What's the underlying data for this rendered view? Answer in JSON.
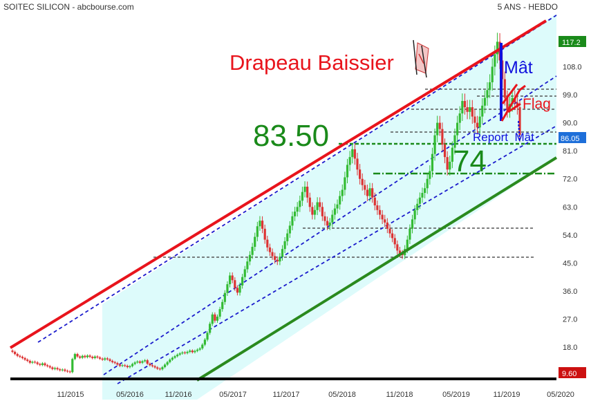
{
  "header": {
    "left": "SOITEC SILICON - abcbourse.com",
    "right": "5 ANS - HEBDO"
  },
  "colors": {
    "up": "#33bb33",
    "down": "#dd3333",
    "channel_top": "#e8141c",
    "channel_bottom": "#2a8a1e",
    "dashed_channel": "#1a1acc",
    "fill": "#ddfbfb",
    "price_badge": "#1e6fd9",
    "high_badge": "#1a8a1a",
    "low_badge": "#cc1111"
  },
  "annotations": {
    "title": "Drapeau Baissier",
    "resistance_value": "83.50",
    "support_value": "74",
    "mast": "Mât",
    "flag": "Flag",
    "report": "Report  Mât"
  },
  "chart_data": {
    "type": "candlestick",
    "title": "SOITEC SILICON",
    "period": "5 ANS - HEBDO",
    "x_ticks": [
      "11/2015",
      "05/2016",
      "11/2016",
      "05/2017",
      "11/2017",
      "05/2018",
      "11/2018",
      "05/2019",
      "11/2019",
      "05/2020"
    ],
    "y_ticks": [
      18.0,
      27.0,
      36.0,
      45.0,
      54.0,
      63.0,
      72.0,
      81.0,
      90.0,
      99.0,
      108.0
    ],
    "ylim": [
      8,
      122
    ],
    "last_price": "86.05",
    "high_label": "117.2",
    "low_label": "9.60",
    "x_positions_of_ticks_note": "tick order left to right",
    "prices_close": [
      16.5,
      15.8,
      15.2,
      14.9,
      14.5,
      14.0,
      13.6,
      13.0,
      13.3,
      13.1,
      12.6,
      12.3,
      12.8,
      12.2,
      11.9,
      11.5,
      11.0,
      11.3,
      10.9,
      10.6,
      10.8,
      10.4,
      10.2,
      10.0,
      14.2,
      15.8,
      15.0,
      14.6,
      15.2,
      14.8,
      15.3,
      14.9,
      14.5,
      15.0,
      14.7,
      14.3,
      14.0,
      14.4,
      14.1,
      13.6,
      13.2,
      12.9,
      12.4,
      12.0,
      12.2,
      12.0,
      11.6,
      11.9,
      12.6,
      13.1,
      13.4,
      13.0,
      13.5,
      13.8,
      12.7,
      12.2,
      11.9,
      11.5,
      11.1,
      10.9,
      11.6,
      12.4,
      13.2,
      14.0,
      14.6,
      15.1,
      15.6,
      16.0,
      16.3,
      16.1,
      16.5,
      16.9,
      16.4,
      16.8,
      17.2,
      17.6,
      18.8,
      20.4,
      22.6,
      25.5,
      28.5,
      26.5,
      27.8,
      30.2,
      32.5,
      35.4,
      38.2,
      41.0,
      39.5,
      37.0,
      35.5,
      37.8,
      40.5,
      43.0,
      45.5,
      47.6,
      50.2,
      53.4,
      56.8,
      58.6,
      56.0,
      52.5,
      50.0,
      48.5,
      47.2,
      46.0,
      45.5,
      47.0,
      49.5,
      52.0,
      54.5,
      57.0,
      60.0,
      61.5,
      63.0,
      65.0,
      67.8,
      69.5,
      66.0,
      63.0,
      60.5,
      62.0,
      64.5,
      63.0,
      60.0,
      58.5,
      57.0,
      58.0,
      60.5,
      62.5,
      63.8,
      66.5,
      68.5,
      72.5,
      76.5,
      79.0,
      81.5,
      78.5,
      75.0,
      72.0,
      70.0,
      68.5,
      66.5,
      69.0,
      66.0,
      63.5,
      62.0,
      60.5,
      59.0,
      58.0,
      56.0,
      54.5,
      53.0,
      51.0,
      49.0,
      48.0,
      47.5,
      49.5,
      52.5,
      56.0,
      59.0,
      62.0,
      64.0,
      66.0,
      67.5,
      69.0,
      72.0,
      74.5,
      80.0,
      86.0,
      90.0,
      88.0,
      83.0,
      79.0,
      75.0,
      77.5,
      82.0,
      86.0,
      90.0,
      93.0,
      97.0,
      95.0,
      93.5,
      95.0,
      92.0,
      90.0,
      88.5,
      92.0,
      95.5,
      98.0,
      100.5,
      103.0,
      108.0,
      112.0,
      116.0,
      110.0,
      104.0,
      98.0,
      94.0,
      96.0,
      98.0,
      96.5,
      95.0,
      86.05
    ]
  }
}
